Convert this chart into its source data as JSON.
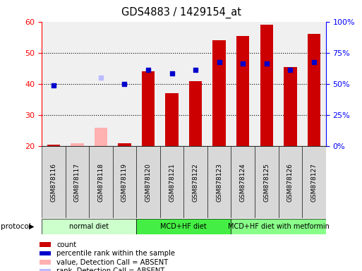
{
  "title": "GDS4883 / 1429154_at",
  "samples": [
    "GSM878116",
    "GSM878117",
    "GSM878118",
    "GSM878119",
    "GSM878120",
    "GSM878121",
    "GSM878122",
    "GSM878123",
    "GSM878124",
    "GSM878125",
    "GSM878126",
    "GSM878127"
  ],
  "count_values": [
    20.5,
    null,
    null,
    21.0,
    44.0,
    37.0,
    41.0,
    54.0,
    55.5,
    59.0,
    45.5,
    56.0
  ],
  "count_absent": [
    null,
    21.0,
    26.0,
    null,
    null,
    null,
    null,
    null,
    null,
    null,
    null,
    null
  ],
  "percentile_values": [
    39.5,
    null,
    null,
    40.0,
    44.5,
    43.5,
    44.5,
    47.0,
    46.5,
    46.5,
    44.5,
    47.0
  ],
  "percentile_absent": [
    null,
    null,
    42.0,
    null,
    null,
    null,
    null,
    null,
    null,
    null,
    null,
    null
  ],
  "protocol_groups": [
    {
      "label": "normal diet",
      "start": 0,
      "end": 3,
      "color": "#ccffcc"
    },
    {
      "label": "MCD+HF diet",
      "start": 4,
      "end": 7,
      "color": "#44ee44"
    },
    {
      "label": "MCD+HF diet with metformin",
      "start": 8,
      "end": 11,
      "color": "#88ff88"
    }
  ],
  "ylim_left": [
    20,
    60
  ],
  "ylim_right": [
    0,
    100
  ],
  "yticks_left": [
    20,
    30,
    40,
    50,
    60
  ],
  "yticks_right": [
    0,
    25,
    50,
    75,
    100
  ],
  "ytick_labels_right": [
    "0%",
    "25%",
    "50%",
    "75%",
    "100%"
  ],
  "bar_color_present": "#cc0000",
  "bar_color_absent": "#ffb0b0",
  "dot_color_present": "#0000cc",
  "dot_color_absent": "#bbbbff",
  "bg_color": "#f0f0f0",
  "grid_color": "#000000",
  "legend_items": [
    {
      "color": "#cc0000",
      "label": "count"
    },
    {
      "color": "#0000cc",
      "label": "percentile rank within the sample"
    },
    {
      "color": "#ffb0b0",
      "label": "value, Detection Call = ABSENT"
    },
    {
      "color": "#bbbbff",
      "label": "rank, Detection Call = ABSENT"
    }
  ]
}
